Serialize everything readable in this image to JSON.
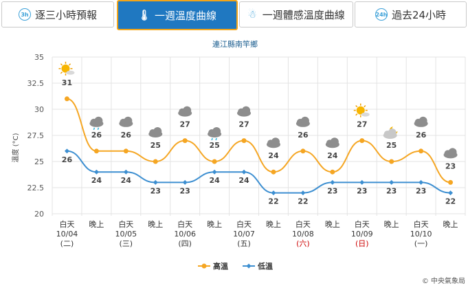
{
  "tabs": [
    {
      "label": "逐三小時預報",
      "icon": "3h"
    },
    {
      "label": "一週溫度曲線",
      "icon": "thermometer"
    },
    {
      "label": "一週體感溫度曲線",
      "icon": "person"
    },
    {
      "label": "過去24小時",
      "icon": "24h"
    }
  ],
  "credit": "© 中央氣象局",
  "colors": {
    "high": "#f5a623",
    "low": "#3d8fd1",
    "sunday": "#cc0000",
    "tab_active": "#1f78c1"
  },
  "chart_data": {
    "type": "line",
    "title": "連江縣南竿鄉",
    "ylabel": "溫度 (°C)",
    "ylim": [
      20,
      35
    ],
    "yticks": [
      "35",
      "32.5",
      "30",
      "27.5",
      "25",
      "22.5",
      "20"
    ],
    "categories": [
      {
        "period": "白天",
        "date": "10/04",
        "weekday": "(二)",
        "holiday": false
      },
      {
        "period": "晚上",
        "date": "",
        "weekday": "",
        "holiday": false
      },
      {
        "period": "白天",
        "date": "10/05",
        "weekday": "(三)",
        "holiday": false
      },
      {
        "period": "晚上",
        "date": "",
        "weekday": "",
        "holiday": false
      },
      {
        "period": "白天",
        "date": "10/06",
        "weekday": "(四)",
        "holiday": false
      },
      {
        "period": "晚上",
        "date": "",
        "weekday": "",
        "holiday": false
      },
      {
        "period": "白天",
        "date": "10/07",
        "weekday": "(五)",
        "holiday": false
      },
      {
        "period": "晚上",
        "date": "",
        "weekday": "",
        "holiday": false
      },
      {
        "period": "白天",
        "date": "10/08",
        "weekday": "(六)",
        "holiday": true
      },
      {
        "period": "晚上",
        "date": "",
        "weekday": "",
        "holiday": false
      },
      {
        "period": "白天",
        "date": "10/09",
        "weekday": "(日)",
        "holiday": true
      },
      {
        "period": "晚上",
        "date": "",
        "weekday": "",
        "holiday": false
      },
      {
        "period": "白天",
        "date": "10/10",
        "weekday": "(一)",
        "holiday": false
      },
      {
        "period": "晚上",
        "date": "",
        "weekday": "",
        "holiday": false
      }
    ],
    "series": [
      {
        "name": "高溫",
        "values": [
          31,
          26,
          26,
          25,
          27,
          25,
          27,
          24,
          26,
          24,
          27,
          25,
          26,
          23
        ]
      },
      {
        "name": "低溫",
        "values": [
          26,
          24,
          24,
          23,
          23,
          24,
          24,
          22,
          22,
          23,
          23,
          23,
          23,
          22
        ]
      }
    ],
    "weather_icons": [
      "sunny-cloud-icon",
      "rain-cloud-icon",
      "cloudy-icon",
      "cloudy-icon",
      "cloudy-icon",
      "rain-cloud-icon",
      "cloudy-icon",
      "cloudy-icon",
      "cloudy-icon",
      "cloudy-icon",
      "sunny-cloud-icon",
      "moon-cloud-icon",
      "cloudy-icon",
      "cloudy-icon"
    ],
    "legend_position": "bottom-center",
    "grid": true
  }
}
